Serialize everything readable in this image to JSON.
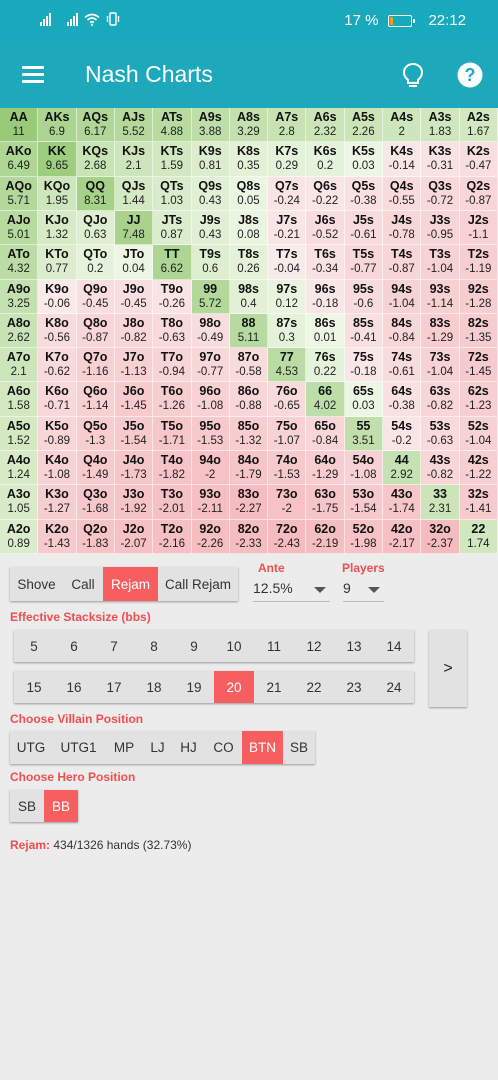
{
  "status_bar": {
    "battery": "17 %",
    "battery_level": 0.17,
    "time": "22:12"
  },
  "app": {
    "title": "Nash Charts",
    "menu_icon": "hamburger-menu-icon",
    "hint_icon": "lightbulb-icon",
    "help_icon": "help-icon"
  },
  "colors": {
    "teal": "#1ea8bc",
    "accent_red": "#f65e60",
    "cell_green": "#c9e8b8",
    "cell_red": "#f9d4d6"
  },
  "grid": [
    [
      [
        "AA",
        "11"
      ],
      [
        "AKs",
        "6.9"
      ],
      [
        "AQs",
        "6.17"
      ],
      [
        "AJs",
        "5.52"
      ],
      [
        "ATs",
        "4.88"
      ],
      [
        "A9s",
        "3.88"
      ],
      [
        "A8s",
        "3.29"
      ],
      [
        "A7s",
        "2.8"
      ],
      [
        "A6s",
        "2.32"
      ],
      [
        "A5s",
        "2.26"
      ],
      [
        "A4s",
        "2"
      ],
      [
        "A3s",
        "1.83"
      ],
      [
        "A2s",
        "1.67"
      ]
    ],
    [
      [
        "AKo",
        "6.49"
      ],
      [
        "KK",
        "9.65"
      ],
      [
        "KQs",
        "2.68"
      ],
      [
        "KJs",
        "2.1"
      ],
      [
        "KTs",
        "1.59"
      ],
      [
        "K9s",
        "0.81"
      ],
      [
        "K8s",
        "0.35"
      ],
      [
        "K7s",
        "0.29"
      ],
      [
        "K6s",
        "0.2"
      ],
      [
        "K5s",
        "0.03"
      ],
      [
        "K4s",
        "-0.14"
      ],
      [
        "K3s",
        "-0.31"
      ],
      [
        "K2s",
        "-0.47"
      ]
    ],
    [
      [
        "AQo",
        "5.71"
      ],
      [
        "KQo",
        "1.95"
      ],
      [
        "QQ",
        "8.31"
      ],
      [
        "QJs",
        "1.44"
      ],
      [
        "QTs",
        "1.03"
      ],
      [
        "Q9s",
        "0.43"
      ],
      [
        "Q8s",
        "0.05"
      ],
      [
        "Q7s",
        "-0.24"
      ],
      [
        "Q6s",
        "-0.22"
      ],
      [
        "Q5s",
        "-0.38"
      ],
      [
        "Q4s",
        "-0.55"
      ],
      [
        "Q3s",
        "-0.72"
      ],
      [
        "Q2s",
        "-0.87"
      ]
    ],
    [
      [
        "AJo",
        "5.01"
      ],
      [
        "KJo",
        "1.32"
      ],
      [
        "QJo",
        "0.63"
      ],
      [
        "JJ",
        "7.48"
      ],
      [
        "JTs",
        "0.87"
      ],
      [
        "J9s",
        "0.43"
      ],
      [
        "J8s",
        "0.08"
      ],
      [
        "J7s",
        "-0.21"
      ],
      [
        "J6s",
        "-0.52"
      ],
      [
        "J5s",
        "-0.61"
      ],
      [
        "J4s",
        "-0.78"
      ],
      [
        "J3s",
        "-0.95"
      ],
      [
        "J2s",
        "-1.1"
      ]
    ],
    [
      [
        "ATo",
        "4.32"
      ],
      [
        "KTo",
        "0.77"
      ],
      [
        "QTo",
        "0.2"
      ],
      [
        "JTo",
        "0.04"
      ],
      [
        "TT",
        "6.62"
      ],
      [
        "T9s",
        "0.6"
      ],
      [
        "T8s",
        "0.26"
      ],
      [
        "T7s",
        "-0.04"
      ],
      [
        "T6s",
        "-0.34"
      ],
      [
        "T5s",
        "-0.77"
      ],
      [
        "T4s",
        "-0.87"
      ],
      [
        "T3s",
        "-1.04"
      ],
      [
        "T2s",
        "-1.19"
      ]
    ],
    [
      [
        "A9o",
        "3.25"
      ],
      [
        "K9o",
        "-0.06"
      ],
      [
        "Q9o",
        "-0.45"
      ],
      [
        "J9o",
        "-0.45"
      ],
      [
        "T9o",
        "-0.26"
      ],
      [
        "99",
        "5.72"
      ],
      [
        "98s",
        "0.4"
      ],
      [
        "97s",
        "0.12"
      ],
      [
        "96s",
        "-0.18"
      ],
      [
        "95s",
        "-0.6"
      ],
      [
        "94s",
        "-1.04"
      ],
      [
        "93s",
        "-1.14"
      ],
      [
        "92s",
        "-1.28"
      ]
    ],
    [
      [
        "A8o",
        "2.62"
      ],
      [
        "K8o",
        "-0.56"
      ],
      [
        "Q8o",
        "-0.87"
      ],
      [
        "J8o",
        "-0.82"
      ],
      [
        "T8o",
        "-0.63"
      ],
      [
        "98o",
        "-0.49"
      ],
      [
        "88",
        "5.11"
      ],
      [
        "87s",
        "0.3"
      ],
      [
        "86s",
        "0.01"
      ],
      [
        "85s",
        "-0.41"
      ],
      [
        "84s",
        "-0.84"
      ],
      [
        "83s",
        "-1.29"
      ],
      [
        "82s",
        "-1.35"
      ]
    ],
    [
      [
        "A7o",
        "2.1"
      ],
      [
        "K7o",
        "-0.62"
      ],
      [
        "Q7o",
        "-1.16"
      ],
      [
        "J7o",
        "-1.13"
      ],
      [
        "T7o",
        "-0.94"
      ],
      [
        "97o",
        "-0.77"
      ],
      [
        "87o",
        "-0.58"
      ],
      [
        "77",
        "4.53"
      ],
      [
        "76s",
        "0.22"
      ],
      [
        "75s",
        "-0.18"
      ],
      [
        "74s",
        "-0.61"
      ],
      [
        "73s",
        "-1.04"
      ],
      [
        "72s",
        "-1.45"
      ]
    ],
    [
      [
        "A6o",
        "1.58"
      ],
      [
        "K6o",
        "-0.71"
      ],
      [
        "Q6o",
        "-1.14"
      ],
      [
        "J6o",
        "-1.45"
      ],
      [
        "T6o",
        "-1.26"
      ],
      [
        "96o",
        "-1.08"
      ],
      [
        "86o",
        "-0.88"
      ],
      [
        "76o",
        "-0.65"
      ],
      [
        "66",
        "4.02"
      ],
      [
        "65s",
        "0.03"
      ],
      [
        "64s",
        "-0.38"
      ],
      [
        "63s",
        "-0.82"
      ],
      [
        "62s",
        "-1.23"
      ]
    ],
    [
      [
        "A5o",
        "1.52"
      ],
      [
        "K5o",
        "-0.89"
      ],
      [
        "Q5o",
        "-1.3"
      ],
      [
        "J5o",
        "-1.54"
      ],
      [
        "T5o",
        "-1.71"
      ],
      [
        "95o",
        "-1.53"
      ],
      [
        "85o",
        "-1.32"
      ],
      [
        "75o",
        "-1.07"
      ],
      [
        "65o",
        "-0.84"
      ],
      [
        "55",
        "3.51"
      ],
      [
        "54s",
        "-0.2"
      ],
      [
        "53s",
        "-0.63"
      ],
      [
        "52s",
        "-1.04"
      ]
    ],
    [
      [
        "A4o",
        "1.24"
      ],
      [
        "K4o",
        "-1.08"
      ],
      [
        "Q4o",
        "-1.49"
      ],
      [
        "J4o",
        "-1.73"
      ],
      [
        "T4o",
        "-1.82"
      ],
      [
        "94o",
        "-2"
      ],
      [
        "84o",
        "-1.79"
      ],
      [
        "74o",
        "-1.53"
      ],
      [
        "64o",
        "-1.29"
      ],
      [
        "54o",
        "-1.08"
      ],
      [
        "44",
        "2.92"
      ],
      [
        "43s",
        "-0.82"
      ],
      [
        "42s",
        "-1.22"
      ]
    ],
    [
      [
        "A3o",
        "1.05"
      ],
      [
        "K3o",
        "-1.27"
      ],
      [
        "Q3o",
        "-1.68"
      ],
      [
        "J3o",
        "-1.92"
      ],
      [
        "T3o",
        "-2.01"
      ],
      [
        "93o",
        "-2.11"
      ],
      [
        "83o",
        "-2.27"
      ],
      [
        "73o",
        "-2"
      ],
      [
        "63o",
        "-1.75"
      ],
      [
        "53o",
        "-1.54"
      ],
      [
        "43o",
        "-1.74"
      ],
      [
        "33",
        "2.31"
      ],
      [
        "32s",
        "-1.41"
      ]
    ],
    [
      [
        "A2o",
        "0.89"
      ],
      [
        "K2o",
        "-1.43"
      ],
      [
        "Q2o",
        "-1.83"
      ],
      [
        "J2o",
        "-2.07"
      ],
      [
        "T2o",
        "-2.16"
      ],
      [
        "92o",
        "-2.26"
      ],
      [
        "82o",
        "-2.33"
      ],
      [
        "72o",
        "-2.43"
      ],
      [
        "62o",
        "-2.19"
      ],
      [
        "52o",
        "-1.98"
      ],
      [
        "42o",
        "-2.17"
      ],
      [
        "32o",
        "-2.37"
      ],
      [
        "22",
        "1.74"
      ]
    ]
  ],
  "actions": {
    "options": [
      "Shove",
      "Call",
      "Rejam",
      "Call Rejam"
    ],
    "selected": "Rejam"
  },
  "ante": {
    "label": "Ante",
    "value": "12.5%"
  },
  "players": {
    "label": "Players",
    "value": "9"
  },
  "stacksize": {
    "label": "Effective Stacksize (bbs)",
    "row1": [
      "5",
      "6",
      "7",
      "8",
      "9",
      "10",
      "11",
      "12",
      "13",
      "14"
    ],
    "row2": [
      "15",
      "16",
      "17",
      "18",
      "19",
      "20",
      "21",
      "22",
      "23",
      "24"
    ],
    "selected": "20",
    "next_label": ">"
  },
  "villain": {
    "label": "Choose Villain Position",
    "options": [
      "UTG",
      "UTG1",
      "MP",
      "LJ",
      "HJ",
      "CO",
      "BTN",
      "SB"
    ],
    "selected": "BTN"
  },
  "hero": {
    "label": "Choose Hero Position",
    "options": [
      "SB",
      "BB"
    ],
    "selected": "BB"
  },
  "summary": {
    "label": "Rejam:",
    "text": "434/1326 hands (32.73%)"
  }
}
